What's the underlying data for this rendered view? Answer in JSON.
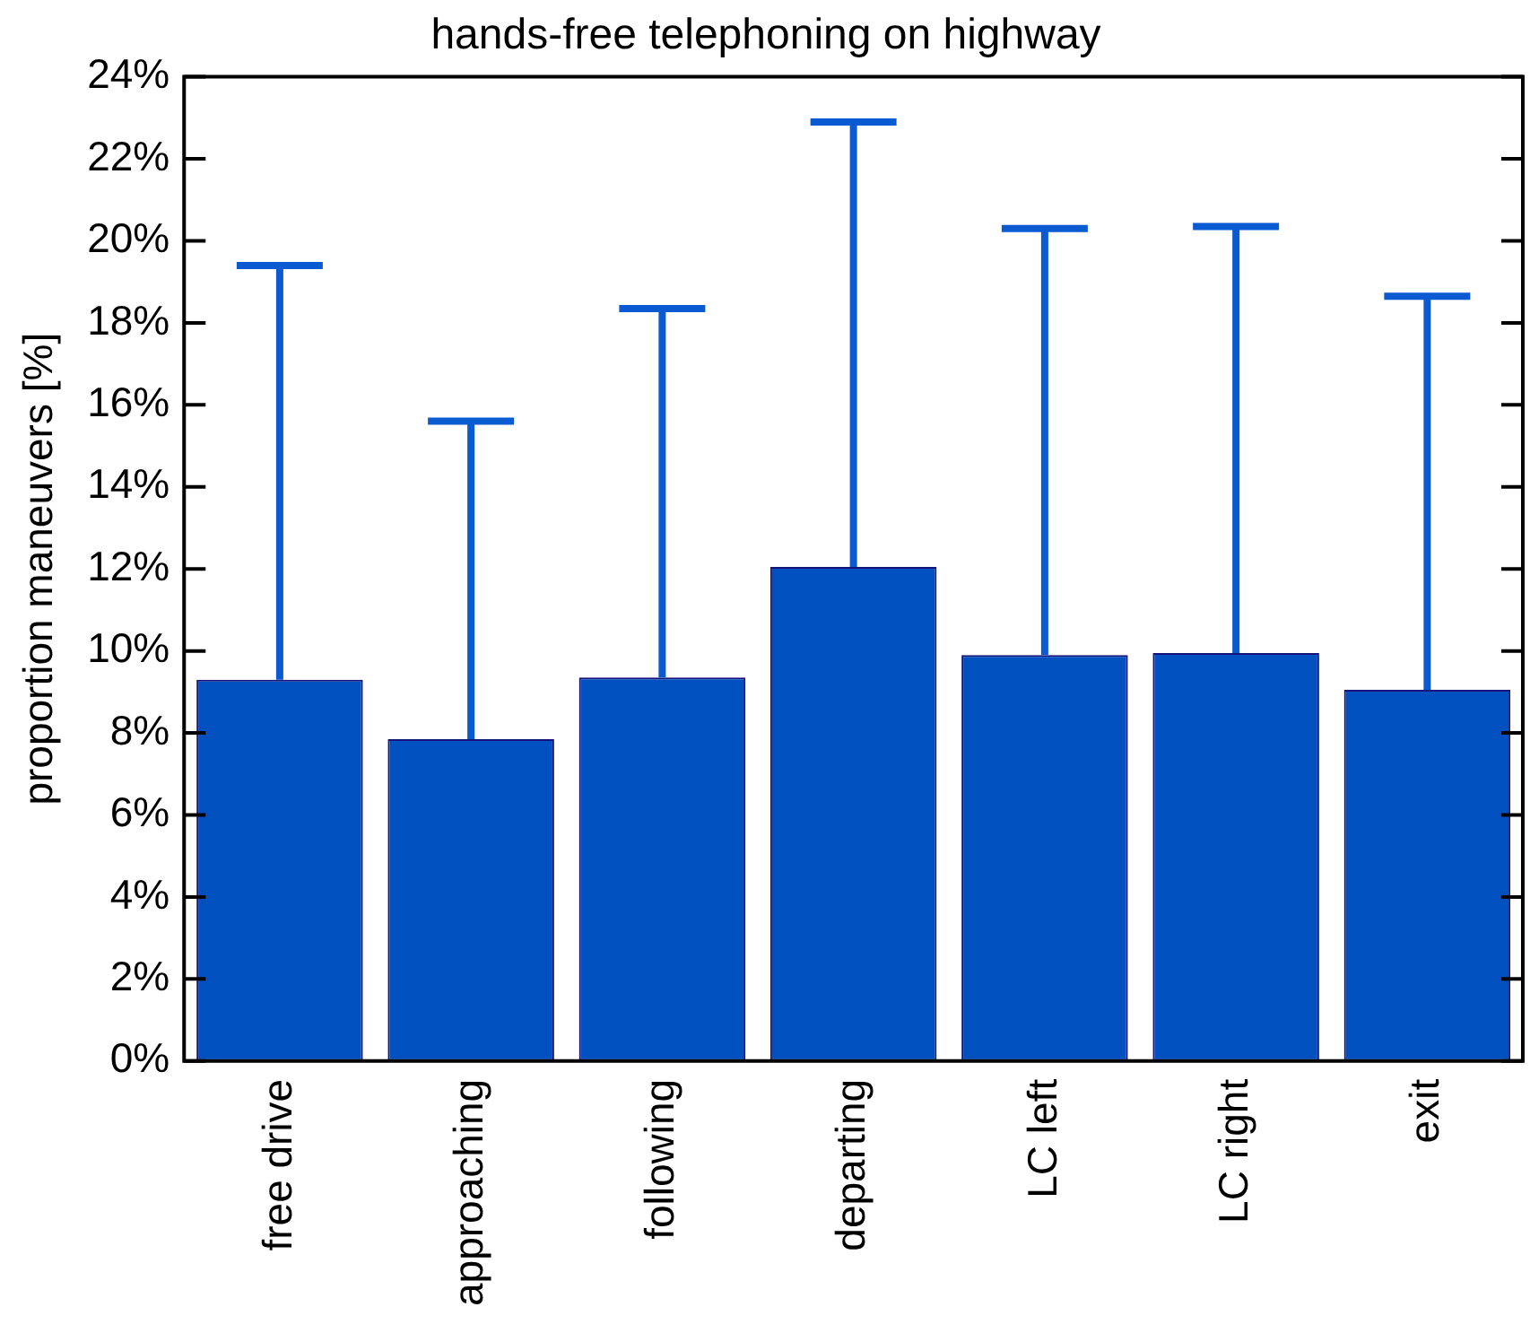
{
  "chart_data": {
    "type": "bar",
    "title": "hands-free telephoning on highway",
    "ylabel": "proportion maneuvers [%]",
    "categories": [
      "free drive",
      "approaching",
      "following",
      "departing",
      "LC left",
      "LC right",
      "exit"
    ],
    "values": [
      9.3,
      7.85,
      9.35,
      12.05,
      9.9,
      9.95,
      9.05
    ],
    "errors": [
      [
        9.3,
        19.4
      ],
      [
        7.85,
        15.6
      ],
      [
        9.35,
        18.35
      ],
      [
        12.05,
        22.9
      ],
      [
        9.9,
        20.3
      ],
      [
        9.95,
        20.35
      ],
      [
        9.05,
        18.65
      ]
    ],
    "color": "#0050c0",
    "ylim": [
      0,
      24
    ],
    "yticks": [
      {
        "value": 0,
        "label": "0%"
      },
      {
        "value": 2,
        "label": "2%"
      },
      {
        "value": 4,
        "label": "4%"
      },
      {
        "value": 6,
        "label": "6%"
      },
      {
        "value": 8,
        "label": "8%"
      },
      {
        "value": 10,
        "label": "10%"
      },
      {
        "value": 12,
        "label": "12%"
      },
      {
        "value": 14,
        "label": "14%"
      },
      {
        "value": 16,
        "label": "16%"
      },
      {
        "value": 18,
        "label": "18%"
      },
      {
        "value": 20,
        "label": "20%"
      },
      {
        "value": 22,
        "label": "22%"
      },
      {
        "value": 24,
        "label": "24%"
      }
    ],
    "grid": false,
    "legend": false
  }
}
